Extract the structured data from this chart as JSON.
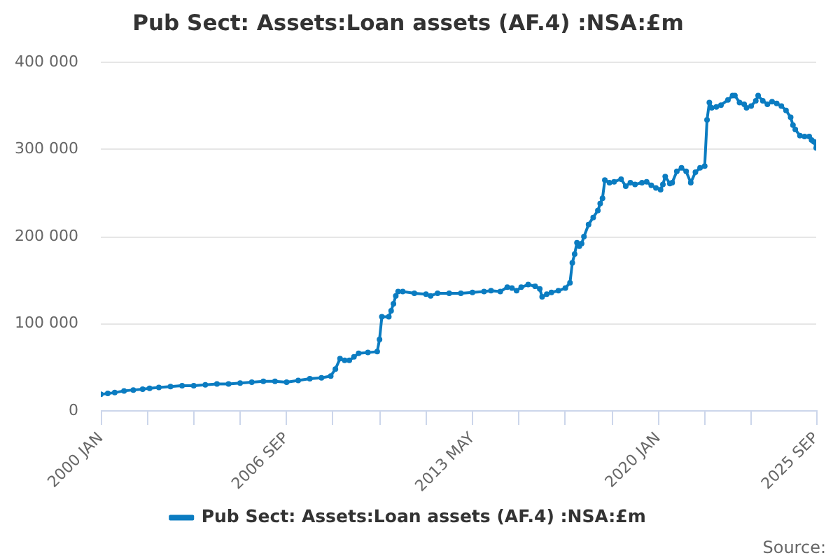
{
  "chart_data": {
    "type": "line",
    "title": "Pub Sect: Assets:Loan assets (AF.4) :NSA:£m",
    "x": [
      "2000-01",
      "2000-04",
      "2000-07",
      "2000-11",
      "2001-03",
      "2001-07",
      "2001-10",
      "2002-02",
      "2002-07",
      "2002-12",
      "2003-05",
      "2003-10",
      "2004-03",
      "2004-08",
      "2005-01",
      "2005-06",
      "2005-11",
      "2006-04",
      "2006-09",
      "2007-02",
      "2007-07",
      "2007-12",
      "2008-04",
      "2008-06",
      "2008-08",
      "2008-10",
      "2008-12",
      "2009-02",
      "2009-04",
      "2009-08",
      "2009-12",
      "2010-01",
      "2010-02",
      "2010-05",
      "2010-06",
      "2010-07",
      "2010-08",
      "2010-09",
      "2010-11",
      "2011-04",
      "2011-09",
      "2011-11",
      "2012-02",
      "2012-07",
      "2012-12",
      "2013-05",
      "2013-10",
      "2014-01",
      "2014-05",
      "2014-08",
      "2014-10",
      "2014-12",
      "2015-02",
      "2015-05",
      "2015-08",
      "2015-10",
      "2015-11",
      "2016-01",
      "2016-03",
      "2016-06",
      "2016-09",
      "2016-11",
      "2016-12",
      "2017-01",
      "2017-02",
      "2017-03",
      "2017-04",
      "2017-05",
      "2017-07",
      "2017-09",
      "2017-11",
      "2017-12",
      "2018-01",
      "2018-02",
      "2018-04",
      "2018-06",
      "2018-09",
      "2018-11",
      "2019-01",
      "2019-03",
      "2019-06",
      "2019-08",
      "2019-10",
      "2019-12",
      "2020-02",
      "2020-03",
      "2020-04",
      "2020-06",
      "2020-07",
      "2020-09",
      "2020-11",
      "2021-01",
      "2021-03",
      "2021-05",
      "2021-07",
      "2021-09",
      "2021-10",
      "2021-11",
      "2021-12",
      "2022-02",
      "2022-04",
      "2022-07",
      "2022-09",
      "2022-10",
      "2022-12",
      "2023-02",
      "2023-03",
      "2023-05",
      "2023-07",
      "2023-08",
      "2023-10",
      "2023-12",
      "2024-02",
      "2024-04",
      "2024-06",
      "2024-08",
      "2024-10",
      "2024-11",
      "2024-12",
      "2025-02",
      "2025-04",
      "2025-06",
      "2025-07",
      "2025-08",
      "2025-09"
    ],
    "series": [
      {
        "name": "Pub Sect: Assets:Loan assets (AF.4) :NSA:£m",
        "color": "#0b7cc1",
        "values": [
          19000,
          20000,
          21000,
          23000,
          24000,
          25000,
          26000,
          27000,
          28000,
          29000,
          29000,
          30000,
          31000,
          31000,
          32000,
          33000,
          34000,
          34000,
          33000,
          35000,
          37000,
          38000,
          40000,
          48000,
          60000,
          58000,
          58000,
          62000,
          66000,
          67000,
          68000,
          82000,
          108000,
          108000,
          115000,
          123000,
          132000,
          137000,
          137000,
          135000,
          134000,
          132000,
          135000,
          135000,
          135000,
          136000,
          137000,
          138000,
          137000,
          142000,
          141000,
          138000,
          142000,
          145000,
          143000,
          140000,
          131000,
          134000,
          136000,
          138000,
          141000,
          147000,
          170000,
          180000,
          193000,
          189000,
          192000,
          200000,
          214000,
          222000,
          230000,
          238000,
          244000,
          265000,
          262000,
          263000,
          266000,
          258000,
          262000,
          260000,
          262000,
          263000,
          259000,
          256000,
          254000,
          260000,
          269000,
          261000,
          262000,
          275000,
          279000,
          275000,
          262000,
          274000,
          279000,
          281000,
          334000,
          354000,
          348000,
          349000,
          351000,
          357000,
          362000,
          362000,
          354000,
          352000,
          348000,
          350000,
          356000,
          362000,
          356000,
          352000,
          355000,
          353000,
          350000,
          345000,
          337000,
          328000,
          323000,
          316000,
          315000,
          315000,
          311000,
          309000,
          302000
        ]
      }
    ],
    "xlim": [
      "2000-01",
      "2025-09"
    ],
    "xticks": [
      {
        "value": "2000-01",
        "label": "2000 JAN"
      },
      {
        "value": "2001-09",
        "label": null
      },
      {
        "value": "2003-05",
        "label": null
      },
      {
        "value": "2005-01",
        "label": null
      },
      {
        "value": "2006-09",
        "label": "2006 SEP"
      },
      {
        "value": "2008-05",
        "label": null
      },
      {
        "value": "2010-01",
        "label": null
      },
      {
        "value": "2011-09",
        "label": null
      },
      {
        "value": "2013-05",
        "label": "2013 MAY"
      },
      {
        "value": "2015-01",
        "label": null
      },
      {
        "value": "2016-09",
        "label": null
      },
      {
        "value": "2018-05",
        "label": null
      },
      {
        "value": "2020-01",
        "label": "2020 JAN"
      },
      {
        "value": "2021-09",
        "label": null
      },
      {
        "value": "2023-05",
        "label": null
      },
      {
        "value": "2025-09",
        "label": "2025 SEP"
      }
    ],
    "ylim": [
      0,
      400000
    ],
    "yticks": [
      0,
      {
        "value": 100000,
        "label": "100 000"
      },
      {
        "value": 200000,
        "label": "200 000"
      },
      {
        "value": 300000,
        "label": "300 000"
      },
      {
        "value": 400000,
        "label": "400 000"
      }
    ],
    "grid": "y",
    "legend": "bottom",
    "marker": "circle",
    "line_style": "solid",
    "annotations": [
      "Source:"
    ]
  }
}
